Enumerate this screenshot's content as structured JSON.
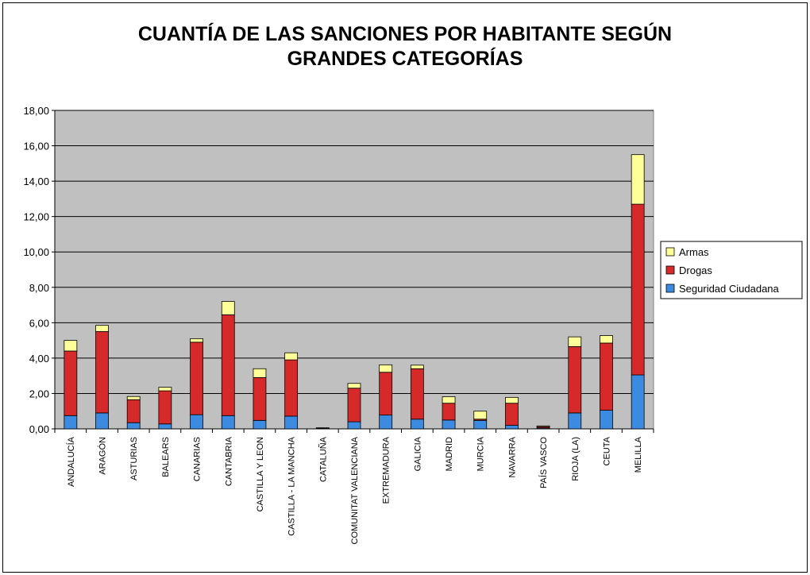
{
  "chart_data": {
    "type": "bar",
    "stacked": true,
    "title_lines": [
      "CUANTÍA DE LAS SANCIONES POR HABITANTE SEGÚN",
      "GRANDES CATEGORÍAS"
    ],
    "categories": [
      "ANDALUCÍA",
      "ARAGÓN",
      "ASTURIAS",
      "BALEARS",
      "CANARIAS",
      "CANTABRIA",
      "CASTILLA Y LEON",
      "CASTILLA - LA MANCHA",
      "CATALUÑA",
      "COMUNITAT VALENCIANA",
      "EXTREMADURA",
      "GALICIA",
      "MADRID",
      "MURCIA",
      "NAVARRA",
      "PAÍS VASCO",
      "RIOJA (LA)",
      "CEUTA",
      "MELILLA"
    ],
    "series": [
      {
        "name": "Seguridad Ciudadana",
        "color": "#3d8be0",
        "values": [
          0.75,
          0.9,
          0.35,
          0.28,
          0.8,
          0.75,
          0.48,
          0.72,
          0.02,
          0.4,
          0.78,
          0.55,
          0.5,
          0.48,
          0.2,
          0.05,
          0.9,
          1.05,
          3.05
        ]
      },
      {
        "name": "Drogas",
        "color": "#d62a2a",
        "values": [
          3.65,
          4.6,
          1.3,
          1.87,
          4.1,
          5.7,
          2.42,
          3.18,
          0.03,
          1.9,
          2.42,
          2.85,
          0.95,
          0.07,
          1.25,
          0.07,
          3.75,
          3.8,
          9.65
        ]
      },
      {
        "name": "Armas",
        "color": "#ffff99",
        "values": [
          0.6,
          0.35,
          0.18,
          0.2,
          0.2,
          0.75,
          0.5,
          0.4,
          0.01,
          0.27,
          0.42,
          0.2,
          0.37,
          0.45,
          0.33,
          0.05,
          0.55,
          0.42,
          2.8
        ]
      }
    ],
    "ylim": [
      0,
      18
    ],
    "yticks": [
      "0,00",
      "2,00",
      "4,00",
      "6,00",
      "8,00",
      "10,00",
      "12,00",
      "14,00",
      "16,00",
      "18,00"
    ],
    "ytick_values": [
      0,
      2,
      4,
      6,
      8,
      10,
      12,
      14,
      16,
      18
    ],
    "grid": true,
    "legend_position": "right",
    "legend_order": [
      "Armas",
      "Drogas",
      "Seguridad Ciudadana"
    ],
    "plot_background": "#c0c0c0"
  }
}
